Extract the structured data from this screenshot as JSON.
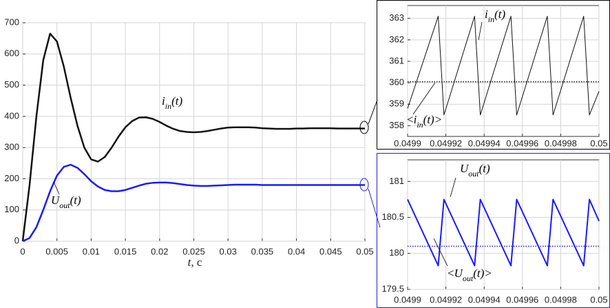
{
  "chart_data": [
    {
      "type": "line",
      "x_label": [
        "t",
        ", c"
      ],
      "xlim": [
        0,
        0.05
      ],
      "xticks": [
        0,
        0.005,
        0.01,
        0.015,
        0.02,
        0.025,
        0.03,
        0.035,
        0.04,
        0.045,
        0.05
      ],
      "ylim": [
        0,
        700
      ],
      "yticks": [
        0,
        100,
        200,
        300,
        400,
        500,
        600,
        700
      ],
      "grid": true,
      "series": [
        {
          "color": "#111111",
          "width": 2.5,
          "x": [
            0,
            0.001,
            0.002,
            0.003,
            0.004,
            0.005,
            0.006,
            0.007,
            0.008,
            0.009,
            0.01,
            0.011,
            0.012,
            0.013,
            0.014,
            0.015,
            0.016,
            0.017,
            0.018,
            0.019,
            0.02,
            0.021,
            0.022,
            0.023,
            0.024,
            0.025,
            0.026,
            0.027,
            0.028,
            0.029,
            0.03,
            0.031,
            0.032,
            0.033,
            0.034,
            0.035,
            0.036,
            0.037,
            0.038,
            0.039,
            0.04,
            0.041,
            0.042,
            0.043,
            0.044,
            0.045,
            0.046,
            0.047,
            0.048,
            0.049,
            0.05
          ],
          "values": [
            0,
            180,
            400,
            580,
            665,
            640,
            560,
            460,
            370,
            300,
            262,
            255,
            270,
            300,
            335,
            365,
            385,
            396,
            397,
            392,
            382,
            370,
            360,
            353,
            350,
            349,
            350,
            353,
            357,
            361,
            364,
            365,
            365,
            365,
            364,
            362,
            361,
            360,
            360,
            360,
            361,
            361,
            362,
            362,
            362,
            362,
            361,
            361,
            361,
            361,
            361
          ]
        },
        {
          "color": "#1a1aff",
          "width": 2.5,
          "x": [
            0,
            0.001,
            0.002,
            0.003,
            0.004,
            0.005,
            0.006,
            0.007,
            0.008,
            0.009,
            0.01,
            0.011,
            0.012,
            0.013,
            0.014,
            0.015,
            0.016,
            0.017,
            0.018,
            0.019,
            0.02,
            0.021,
            0.022,
            0.023,
            0.024,
            0.025,
            0.026,
            0.027,
            0.028,
            0.029,
            0.03,
            0.031,
            0.032,
            0.033,
            0.034,
            0.035,
            0.036,
            0.037,
            0.038,
            0.039,
            0.04,
            0.041,
            0.042,
            0.043,
            0.044,
            0.045,
            0.046,
            0.047,
            0.048,
            0.049,
            0.05
          ],
          "values": [
            0,
            10,
            45,
            100,
            160,
            210,
            238,
            245,
            235,
            215,
            192,
            175,
            164,
            160,
            160,
            164,
            171,
            178,
            184,
            187,
            188,
            188,
            186,
            183,
            180,
            178,
            177,
            177,
            178,
            179,
            180,
            181,
            181,
            181,
            181,
            180,
            180,
            180,
            180,
            180,
            180,
            180,
            180,
            180,
            180,
            180,
            180,
            180,
            180,
            180,
            180
          ]
        }
      ],
      "annotations": [
        {
          "text": "i",
          "sub": "in",
          "tail": "(t)"
        },
        {
          "text": "U",
          "sub": "out",
          "tail": "(t)"
        }
      ]
    },
    {
      "type": "line",
      "xlim": [
        0.0499,
        0.05
      ],
      "xticks": [
        0.0499,
        0.04992,
        0.04994,
        0.04996,
        0.04998,
        0.05
      ],
      "ylim": [
        357.5,
        363.6
      ],
      "yticks": [
        358,
        359,
        360,
        361,
        362,
        363
      ],
      "grid": true,
      "series": [
        {
          "color": "#111111",
          "width": 1,
          "x": [
            0.0499,
            0.049916,
            0.049919,
            0.049935,
            0.049938,
            0.049954,
            0.049957,
            0.049973,
            0.049976,
            0.049992,
            0.049995,
            0.05
          ],
          "values": [
            358.8,
            363.1,
            358.5,
            363.1,
            358.5,
            363.1,
            358.5,
            363.1,
            358.5,
            363.1,
            358.5,
            359.6
          ]
        },
        {
          "color": "#111111",
          "width": 1.5,
          "dash": "dotted",
          "x": [
            0.0499,
            0.05
          ],
          "values": [
            360.05,
            360.05
          ]
        }
      ],
      "annotations": [
        {
          "text": "i",
          "sub": "in",
          "tail": "(t)"
        },
        {
          "head": "<",
          "text": "i",
          "sub": "in",
          "tail": "(t)>"
        }
      ]
    },
    {
      "type": "line",
      "xlim": [
        0.0499,
        0.05
      ],
      "xticks": [
        0.0499,
        0.04992,
        0.04994,
        0.04996,
        0.04998,
        0.05
      ],
      "ylim": [
        179.5,
        181.3
      ],
      "yticks": [
        179.5,
        180,
        180.5,
        181
      ],
      "grid": true,
      "series": [
        {
          "color": "#1a1aff",
          "width": 2,
          "x": [
            0.0499,
            0.049916,
            0.049919,
            0.049935,
            0.049938,
            0.049954,
            0.049957,
            0.049973,
            0.049976,
            0.049992,
            0.049995,
            0.05
          ],
          "values": [
            180.75,
            179.83,
            180.75,
            179.83,
            180.75,
            179.83,
            180.75,
            179.83,
            180.75,
            179.83,
            180.75,
            180.45
          ]
        },
        {
          "color": "#1a1aff",
          "width": 1.5,
          "dash": "dotted",
          "x": [
            0.0499,
            0.05
          ],
          "values": [
            180.1,
            180.1
          ]
        }
      ],
      "annotations": [
        {
          "text": "U",
          "sub": "out",
          "tail": "(t)"
        },
        {
          "head": "<",
          "text": "U",
          "sub": "out",
          "tail": "(t)>"
        }
      ]
    }
  ]
}
